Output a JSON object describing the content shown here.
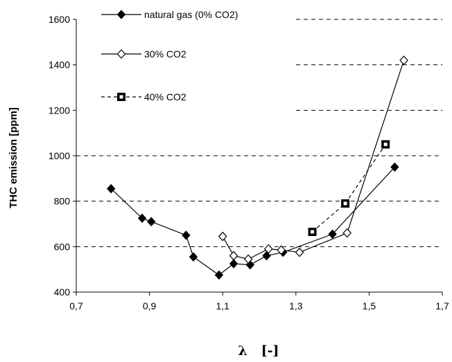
{
  "chart_data": {
    "type": "line",
    "title": "",
    "xlabel": "λ   [-]",
    "ylabel": "THC emission [ppm]",
    "xlim": [
      0.7,
      1.7
    ],
    "ylim": [
      400,
      1600
    ],
    "x_ticks": [
      0.7,
      0.9,
      1.1,
      1.3,
      1.5,
      1.7
    ],
    "x_tick_labels": [
      "0,7",
      "0,9",
      "1,1",
      "1,3",
      "1,5",
      "1,7"
    ],
    "y_ticks": [
      400,
      600,
      800,
      1000,
      1200,
      1400,
      1600
    ],
    "y_tick_labels": [
      "400",
      "600",
      "800",
      "1000",
      "1200",
      "1400",
      "1600"
    ],
    "grid": "horizontal dashed",
    "legend_position": "top-left",
    "series": [
      {
        "name": "natural gas (0% CO2)",
        "marker": "filled-diamond",
        "line": "solid",
        "x": [
          0.795,
          0.88,
          0.905,
          1.0,
          1.02,
          1.09,
          1.13,
          1.175,
          1.22,
          1.265,
          1.4,
          1.57
        ],
        "y": [
          855,
          725,
          710,
          650,
          555,
          475,
          525,
          520,
          560,
          575,
          655,
          950
        ]
      },
      {
        "name": "30% CO2",
        "marker": "open-diamond",
        "line": "solid",
        "x": [
          1.1,
          1.13,
          1.17,
          1.225,
          1.26,
          1.31,
          1.44,
          1.595
        ],
        "y": [
          645,
          560,
          545,
          590,
          585,
          575,
          660,
          1420
        ]
      },
      {
        "name": "40% CO2",
        "marker": "square",
        "line": "dashed",
        "x": [
          1.345,
          1.435,
          1.545
        ],
        "y": [
          665,
          790,
          1050
        ]
      }
    ]
  }
}
